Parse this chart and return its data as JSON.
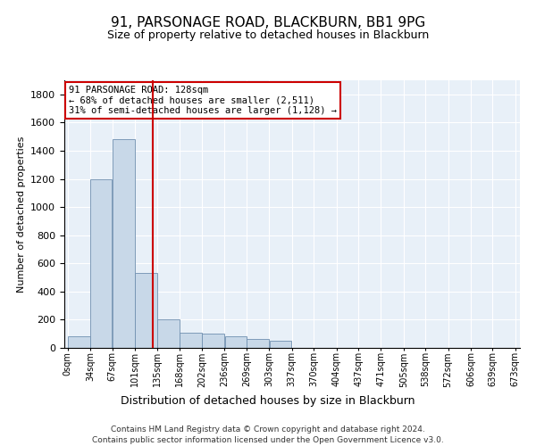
{
  "title": "91, PARSONAGE ROAD, BLACKBURN, BB1 9PG",
  "subtitle": "Size of property relative to detached houses in Blackburn",
  "xlabel": "Distribution of detached houses by size in Blackburn",
  "ylabel": "Number of detached properties",
  "property_label": "91 PARSONAGE ROAD: 128sqm",
  "annotation_line1": "← 68% of detached houses are smaller (2,511)",
  "annotation_line2": "31% of semi-detached houses are larger (1,128) →",
  "bar_edges": [
    0,
    34,
    67,
    101,
    135,
    168,
    202,
    236,
    269,
    303,
    337,
    370,
    404,
    437,
    471,
    505,
    538,
    572,
    606,
    639,
    673
  ],
  "bar_heights": [
    80,
    1200,
    1480,
    530,
    200,
    110,
    100,
    85,
    65,
    50,
    0,
    0,
    0,
    0,
    0,
    0,
    0,
    0,
    0,
    0
  ],
  "bar_color": "#c8d8e8",
  "bar_edge_color": "#7090b0",
  "vline_color": "#cc0000",
  "vline_x": 128,
  "ylim": [
    0,
    1900
  ],
  "yticks": [
    0,
    200,
    400,
    600,
    800,
    1000,
    1200,
    1400,
    1600,
    1800
  ],
  "bg_color": "#e8f0f8",
  "annotation_box_color": "#cc0000",
  "footer_line1": "Contains HM Land Registry data © Crown copyright and database right 2024.",
  "footer_line2": "Contains public sector information licensed under the Open Government Licence v3.0."
}
